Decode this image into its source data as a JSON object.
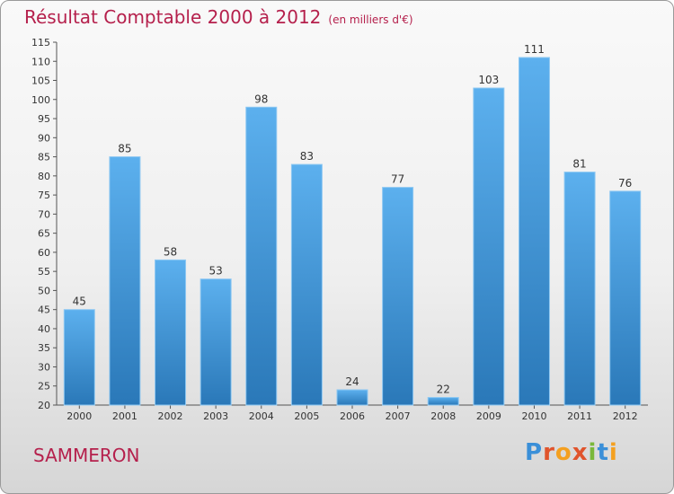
{
  "title": "Résultat Comptable 2000 à 2012",
  "unit": "(en milliers d'€)",
  "commune": "SAMMERON",
  "logo": {
    "letters": [
      "P",
      "r",
      "o",
      "x",
      "i",
      "t",
      "i"
    ],
    "colors": [
      "#3a8fd8",
      "#e0542c",
      "#f4a020",
      "#e0542c",
      "#7ab83a",
      "#3a8fd8",
      "#f4a020"
    ]
  },
  "chart_data": {
    "type": "bar",
    "title": "Résultat Comptable 2000 à 2012",
    "xlabel": "",
    "ylabel": "",
    "categories": [
      "2000",
      "2001",
      "2002",
      "2003",
      "2004",
      "2005",
      "2006",
      "2007",
      "2008",
      "2009",
      "2010",
      "2011",
      "2012"
    ],
    "values": [
      45,
      85,
      58,
      53,
      98,
      83,
      24,
      77,
      22,
      103,
      111,
      81,
      76
    ],
    "ylim": [
      20,
      115
    ],
    "yticks": [
      20,
      25,
      30,
      35,
      40,
      45,
      50,
      55,
      60,
      65,
      70,
      75,
      80,
      85,
      90,
      95,
      100,
      105,
      110,
      115
    ],
    "grid": false,
    "bar_color": "#3f97db"
  }
}
